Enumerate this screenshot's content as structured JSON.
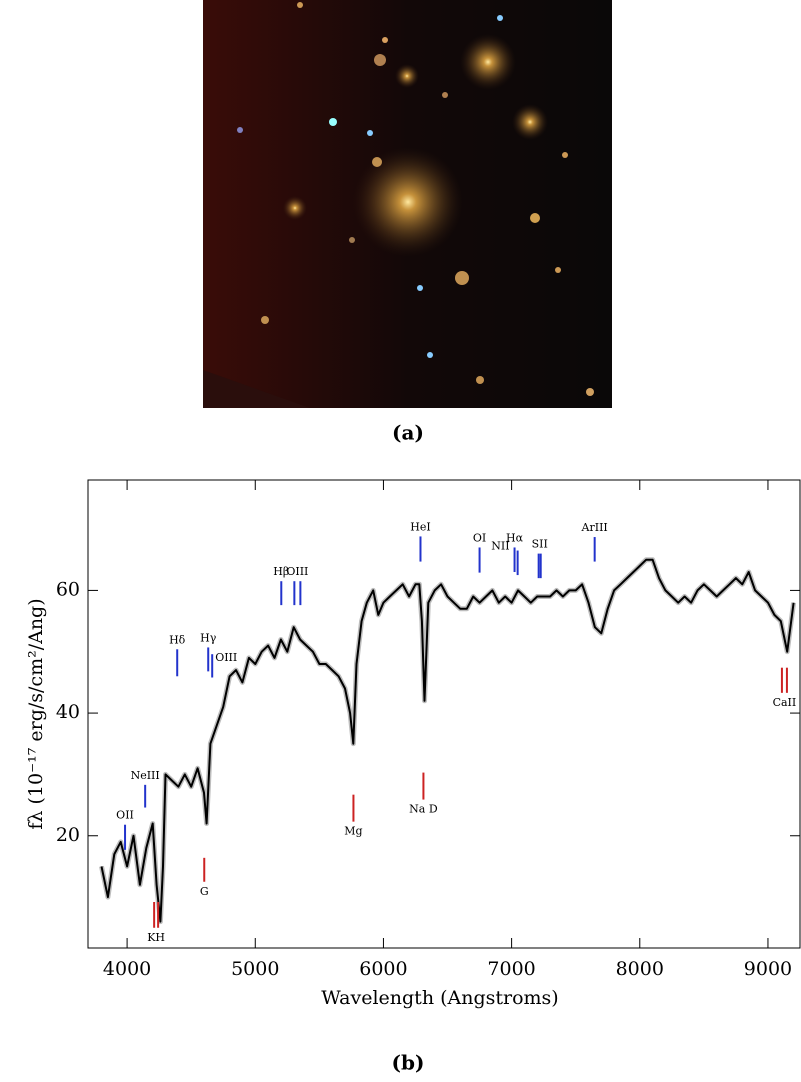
{
  "captions": [
    "(a)",
    "(b)"
  ],
  "chart_data": {
    "type": "line",
    "xlabel": "Wavelength (Angstroms)",
    "ylabel": "fλ (10⁻¹⁷ erg/s/cm²/Ang)",
    "x": [
      3800,
      3850,
      3900,
      3950,
      4000,
      4050,
      4100,
      4150,
      4200,
      4230,
      4260,
      4280,
      4300,
      4350,
      4400,
      4450,
      4500,
      4550,
      4600,
      4620,
      4650,
      4700,
      4750,
      4800,
      4850,
      4900,
      4950,
      5000,
      5050,
      5100,
      5150,
      5200,
      5250,
      5300,
      5350,
      5400,
      5450,
      5500,
      5550,
      5600,
      5650,
      5700,
      5740,
      5765,
      5790,
      5830,
      5870,
      5920,
      5960,
      6000,
      6050,
      6100,
      6150,
      6200,
      6250,
      6280,
      6300,
      6320,
      6350,
      6400,
      6450,
      6500,
      6550,
      6600,
      6650,
      6700,
      6750,
      6800,
      6850,
      6900,
      6950,
      7000,
      7050,
      7100,
      7150,
      7200,
      7250,
      7300,
      7350,
      7400,
      7450,
      7500,
      7550,
      7600,
      7650,
      7700,
      7750,
      7800,
      7850,
      7900,
      7950,
      8000,
      8050,
      8100,
      8150,
      8200,
      8250,
      8300,
      8350,
      8400,
      8450,
      8500,
      8550,
      8600,
      8650,
      8700,
      8750,
      8800,
      8850,
      8900,
      8950,
      9000,
      9050,
      9100,
      9150,
      9200
    ],
    "values": [
      15,
      10,
      17,
      19,
      15,
      20,
      12,
      18,
      22,
      12,
      6,
      15,
      30,
      29,
      28,
      30,
      28,
      31,
      27,
      22,
      35,
      38,
      41,
      46,
      47,
      45,
      49,
      48,
      50,
      51,
      49,
      52,
      50,
      54,
      52,
      51,
      50,
      48,
      48,
      47,
      46,
      44,
      40,
      35,
      48,
      55,
      58,
      60,
      56,
      58,
      59,
      60,
      61,
      59,
      61,
      61,
      55,
      42,
      58,
      60,
      61,
      59,
      58,
      57,
      57,
      59,
      58,
      59,
      60,
      58,
      59,
      58,
      60,
      59,
      58,
      59,
      59,
      59,
      60,
      59,
      60,
      60,
      61,
      58,
      54,
      53,
      57,
      60,
      61,
      62,
      63,
      64,
      65,
      65,
      62,
      60,
      59,
      58,
      59,
      58,
      60,
      61,
      60,
      59,
      60,
      61,
      62,
      61,
      63,
      60,
      59,
      58,
      56,
      55,
      50,
      58
    ],
    "color": "#000000",
    "band_color": "#bdbdbd",
    "xlim": [
      3695,
      9250
    ],
    "ylim": [
      1.7,
      78
    ],
    "xticks": [
      4000,
      5000,
      6000,
      7000,
      8000,
      9000
    ],
    "yticks": [
      20,
      40,
      60
    ],
    "annotations": [
      {
        "text": "OII",
        "x": [
          3984
        ],
        "y": [
          17.7,
          21.8
        ],
        "color": "#2233cc",
        "side": "above"
      },
      {
        "text": "NeIII",
        "x": [
          4141
        ],
        "y": [
          24.6,
          28.3
        ],
        "color": "#2233cc",
        "side": "above"
      },
      {
        "text": "Hδ",
        "x": [
          4391
        ],
        "y": [
          46.0,
          50.4
        ],
        "color": "#2233cc",
        "side": "above"
      },
      {
        "text": "Hγ",
        "x": [
          4633
        ],
        "y": [
          46.8,
          50.7
        ],
        "color": "#2233cc",
        "side": "above"
      },
      {
        "text": "OIII",
        "x": [
          4664
        ],
        "y": [
          45.8,
          49.6
        ],
        "color": "#2233cc",
        "side": "right"
      },
      {
        "text": "Hβ",
        "x": [
          5203
        ],
        "y": [
          57.6,
          61.5
        ],
        "color": "#2233cc",
        "side": "above"
      },
      {
        "text": "OIII",
        "x": [
          5305,
          5352
        ],
        "y": [
          57.6,
          61.5
        ],
        "color": "#2233cc",
        "side": "above"
      },
      {
        "text": "HeI",
        "x": [
          6289
        ],
        "y": [
          64.7,
          68.8
        ],
        "color": "#2233cc",
        "side": "above"
      },
      {
        "text": "OI",
        "x": [
          6750
        ],
        "y": [
          62.9,
          67.0
        ],
        "color": "#2233cc",
        "side": "above"
      },
      {
        "text": "NII",
        "x": [
          7047
        ],
        "y": [
          62.5,
          66.5
        ],
        "color": "#2233cc",
        "side": "left"
      },
      {
        "text": "Hα",
        "x": [
          7023
        ],
        "y": [
          63.0,
          67.0
        ],
        "color": "#2233cc",
        "side": "above"
      },
      {
        "text": "SII",
        "x": [
          7211,
          7227
        ],
        "y": [
          62.0,
          66.0
        ],
        "color": "#2233cc",
        "side": "above"
      },
      {
        "text": "ArIII",
        "x": [
          7648
        ],
        "y": [
          64.7,
          68.7
        ],
        "color": "#2233cc",
        "side": "above"
      },
      {
        "text": "KH",
        "x": [
          4211,
          4242
        ],
        "y": [
          5.0,
          9.2
        ],
        "color": "#cc2222",
        "side": "below"
      },
      {
        "text": "G",
        "x": [
          4602
        ],
        "y": [
          12.5,
          16.4
        ],
        "color": "#cc2222",
        "side": "below"
      },
      {
        "text": "Mg",
        "x": [
          5766
        ],
        "y": [
          22.3,
          26.7
        ],
        "color": "#cc2222",
        "side": "below"
      },
      {
        "text": "Na D",
        "x": [
          6312
        ],
        "y": [
          25.9,
          30.3
        ],
        "color": "#cc2222",
        "side": "below"
      },
      {
        "text": "CaII",
        "x": [
          9109,
          9148
        ],
        "y": [
          43.3,
          47.4
        ],
        "color": "#cc2222",
        "side": "below"
      }
    ]
  }
}
